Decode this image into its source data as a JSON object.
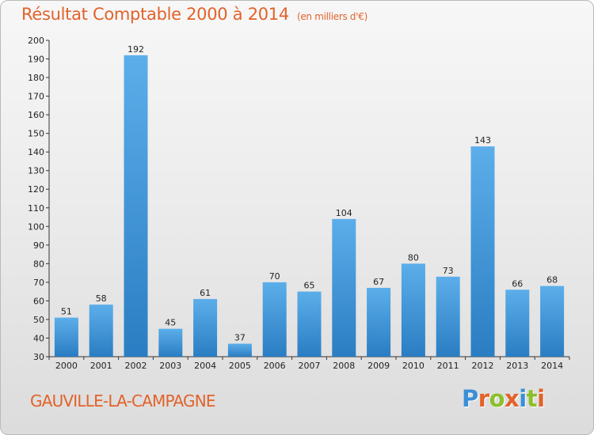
{
  "header": {
    "title": "Résultat Comptable 2000 à 2014",
    "unit": "(en milliers d'€)"
  },
  "footer": {
    "city": "GAUVILLE-LA-CAMPAGNE",
    "logo": "Proxiti"
  },
  "colors": {
    "accent": "#e2622a",
    "bar_top": "#5caeea",
    "bar_bottom": "#2a7dc2",
    "logo": [
      "#3a8fd6",
      "#e2622a",
      "#8cbf2a",
      "#e2622a",
      "#3a8fd6",
      "#8cbf2a",
      "#e2622a"
    ]
  },
  "chart_data": {
    "type": "bar",
    "categories": [
      "2000",
      "2001",
      "2002",
      "2003",
      "2004",
      "2005",
      "2006",
      "2007",
      "2008",
      "2009",
      "2010",
      "2011",
      "2012",
      "2013",
      "2014"
    ],
    "values": [
      51,
      58,
      192,
      45,
      61,
      37,
      70,
      65,
      104,
      67,
      80,
      73,
      143,
      66,
      68
    ],
    "title": "Résultat Comptable 2000 à 2014",
    "xlabel": "",
    "ylabel": "",
    "ylim": [
      30,
      200
    ],
    "yticks": [
      30,
      40,
      50,
      60,
      70,
      80,
      90,
      100,
      110,
      120,
      130,
      140,
      150,
      160,
      170,
      180,
      190,
      200
    ],
    "grid": false,
    "legend": "none"
  }
}
